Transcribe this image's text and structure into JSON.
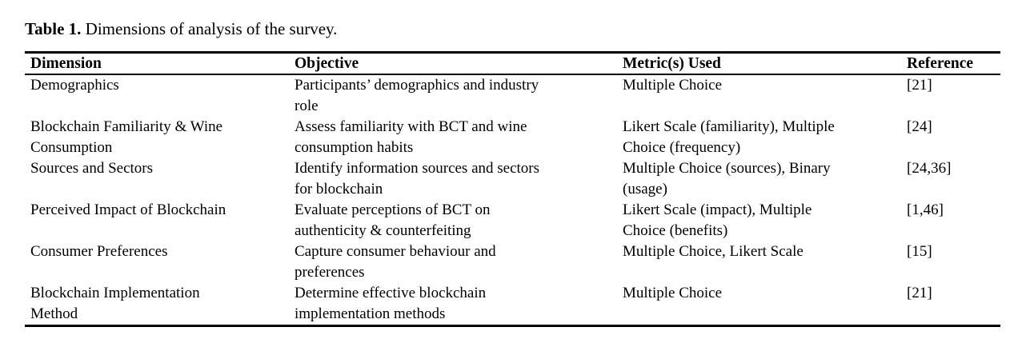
{
  "caption": {
    "label": "Table 1.",
    "text": "Dimensions of analysis of the survey."
  },
  "table": {
    "headers": [
      "Dimension",
      "Objective",
      "Metric(s) Used",
      "Reference"
    ],
    "rows": [
      {
        "dimension": "Demographics",
        "objective": "Participants’ demographics and industry\nrole",
        "metric": "Multiple Choice",
        "reference": "[21]"
      },
      {
        "dimension": "Blockchain Familiarity & Wine\nConsumption",
        "objective": "Assess familiarity with BCT and wine\nconsumption habits",
        "metric": "Likert Scale (familiarity), Multiple\nChoice (frequency)",
        "reference": "[24]"
      },
      {
        "dimension": "Sources and Sectors",
        "objective": "Identify information sources and sectors\nfor blockchain",
        "metric": "Multiple Choice (sources), Binary\n(usage)",
        "reference": "[24,36]"
      },
      {
        "dimension": "Perceived Impact of Blockchain",
        "objective": "Evaluate perceptions of BCT on\nauthenticity & counterfeiting",
        "metric": "Likert Scale (impact), Multiple\nChoice (benefits)",
        "reference": "[1,46]"
      },
      {
        "dimension": "Consumer Preferences",
        "objective": "Capture consumer behaviour and\npreferences",
        "metric": "Multiple Choice, Likert Scale",
        "reference": "[15]"
      },
      {
        "dimension": "Blockchain Implementation\nMethod",
        "objective": "Determine effective blockchain\nimplementation methods",
        "metric": "Multiple Choice",
        "reference": "[21]"
      }
    ]
  }
}
